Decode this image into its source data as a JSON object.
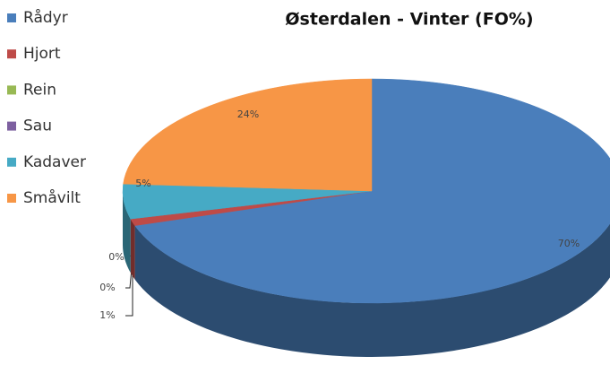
{
  "chart_data": {
    "type": "pie",
    "title": "Østerdalen - Vinter (FO%)",
    "categories": [
      "Rådyr",
      "Hjort",
      "Rein",
      "Sau",
      "Kadaver",
      "Småvilt"
    ],
    "values": [
      70,
      1,
      0,
      0,
      5,
      24
    ],
    "value_labels": [
      "70%",
      "1%",
      "0%",
      "0%",
      "5%",
      "24%"
    ],
    "colors": [
      "#4a7ebb",
      "#be4b48",
      "#98b954",
      "#7d60a0",
      "#46aac5",
      "#f79646"
    ],
    "legend": "left"
  }
}
